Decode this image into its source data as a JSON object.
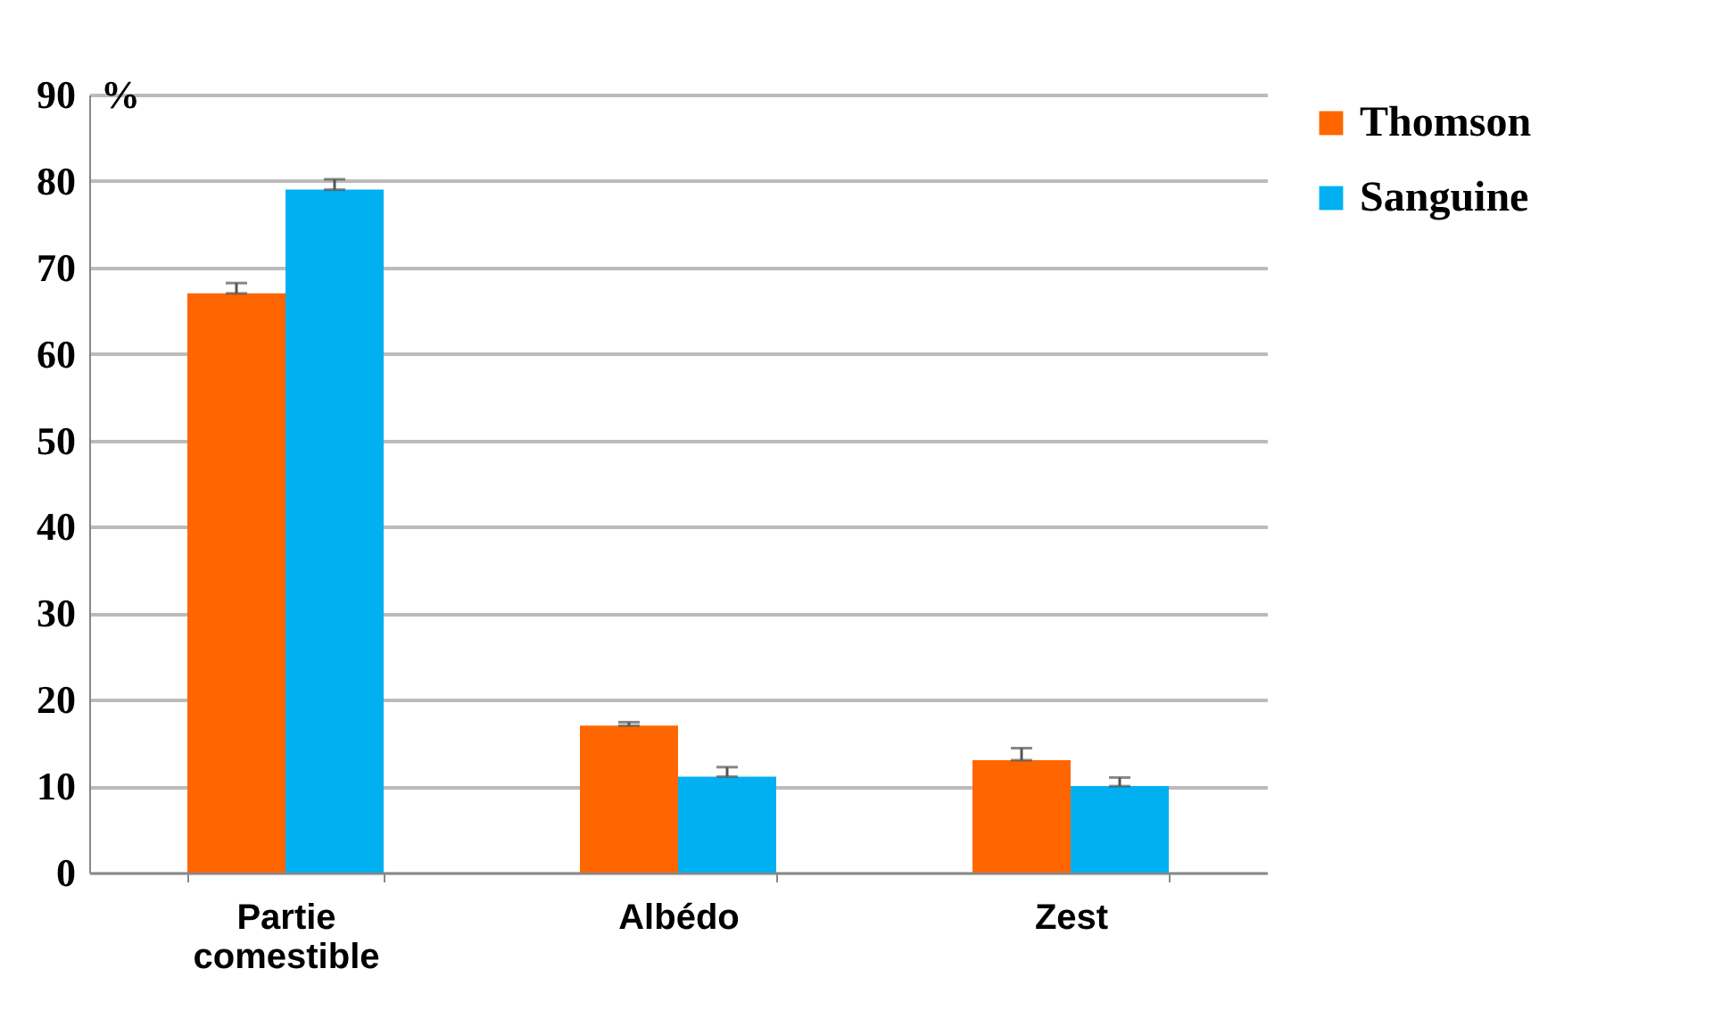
{
  "chart_data": {
    "type": "bar",
    "ylabel": "%",
    "categories": [
      "Partie comestible",
      "Albédo",
      "Zest"
    ],
    "series": [
      {
        "name": "Thomson",
        "color": "#ff6600",
        "values": [
          67,
          17,
          13
        ],
        "errors": [
          [
            67,
            68.2
          ],
          [
            17,
            17.4
          ],
          [
            13,
            14.4
          ]
        ]
      },
      {
        "name": "Sanguine",
        "color": "#00b0f0",
        "values": [
          79,
          11.1,
          10
        ],
        "errors": [
          [
            79,
            80.2
          ],
          [
            11.1,
            12.2
          ],
          [
            10,
            11
          ]
        ]
      }
    ],
    "ylim": [
      0,
      90
    ],
    "yticks": [
      0,
      10,
      20,
      30,
      40,
      50,
      60,
      70,
      80,
      90
    ],
    "grid": "y",
    "legend": "right"
  }
}
